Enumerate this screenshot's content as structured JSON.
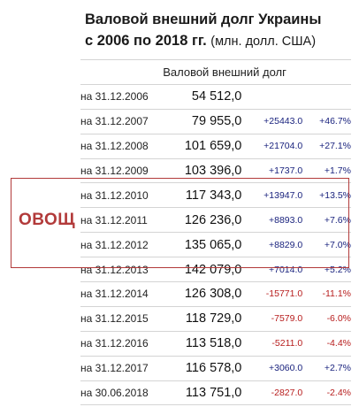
{
  "title": {
    "line1": "Валовой внешний долг Украины",
    "line2": "с 2006 по 2018 гг.",
    "unit": "(млн. долл. США)"
  },
  "table": {
    "header": "Валовой внешний долг",
    "rows": [
      {
        "date": "на 31.12.2006",
        "value": "54 512,0",
        "abs": "",
        "pct": "",
        "sign": "none"
      },
      {
        "date": "на 31.12.2007",
        "value": "79 955,0",
        "abs": "+25443.0",
        "pct": "+46.7%",
        "sign": "pos"
      },
      {
        "date": "на 31.12.2008",
        "value": "101 659,0",
        "abs": "+21704.0",
        "pct": "+27.1%",
        "sign": "pos"
      },
      {
        "date": "на 31.12.2009",
        "value": "103 396,0",
        "abs": "+1737.0",
        "pct": "+1.7%",
        "sign": "pos"
      },
      {
        "date": "на 31.12.2010",
        "value": "117 343,0",
        "abs": "+13947.0",
        "pct": "+13.5%",
        "sign": "pos"
      },
      {
        "date": "на 31.12.2011",
        "value": "126 236,0",
        "abs": "+8893.0",
        "pct": "+7.6%",
        "sign": "pos"
      },
      {
        "date": "на 31.12.2012",
        "value": "135 065,0",
        "abs": "+8829.0",
        "pct": "+7.0%",
        "sign": "pos"
      },
      {
        "date": "на 31.12.2013",
        "value": "142 079,0",
        "abs": "+7014.0",
        "pct": "+5.2%",
        "sign": "pos"
      },
      {
        "date": "на 31.12.2014",
        "value": "126 308,0",
        "abs": "-15771.0",
        "pct": "-11.1%",
        "sign": "neg"
      },
      {
        "date": "на 31.12.2015",
        "value": "118 729,0",
        "abs": "-7579.0",
        "pct": "-6.0%",
        "sign": "neg"
      },
      {
        "date": "на 31.12.2016",
        "value": "113 518,0",
        "abs": "-5211.0",
        "pct": "-4.4%",
        "sign": "neg"
      },
      {
        "date": "на 31.12.2017",
        "value": "116 578,0",
        "abs": "+3060.0",
        "pct": "+2.7%",
        "sign": "pos"
      },
      {
        "date": "на 30.06.2018",
        "value": "113 751,0",
        "abs": "-2827.0",
        "pct": "-2.4%",
        "sign": "neg"
      }
    ]
  },
  "annotation": {
    "label": "ОВОЩ",
    "color": "#b23a3a"
  },
  "colors": {
    "positive": "#1a237e",
    "negative": "#b71c1c"
  }
}
